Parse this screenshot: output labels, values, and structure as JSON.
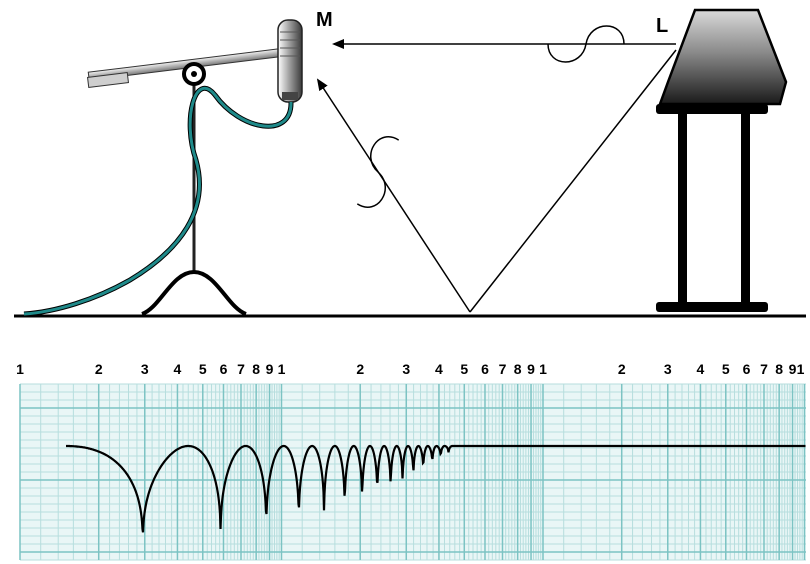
{
  "labels": {
    "microphone": "M",
    "loudspeaker": "L"
  },
  "graph": {
    "decade_tick_labels": [
      "1",
      "2",
      "3",
      "4",
      "5",
      "6",
      "7",
      "8",
      "9",
      "1",
      "2",
      "3",
      "4",
      "5",
      "6",
      "7",
      "8",
      "9",
      "1",
      "2",
      "3",
      "4",
      "5",
      "6",
      "7",
      "8",
      "9",
      "1"
    ],
    "grid_colors": {
      "minor": "#b7dede",
      "major": "#7cc3c3",
      "background": "#e9f6f6"
    },
    "curve_color": "#000000"
  },
  "colors": {
    "cable": "#1f8a8a",
    "ground": "#000000"
  }
}
